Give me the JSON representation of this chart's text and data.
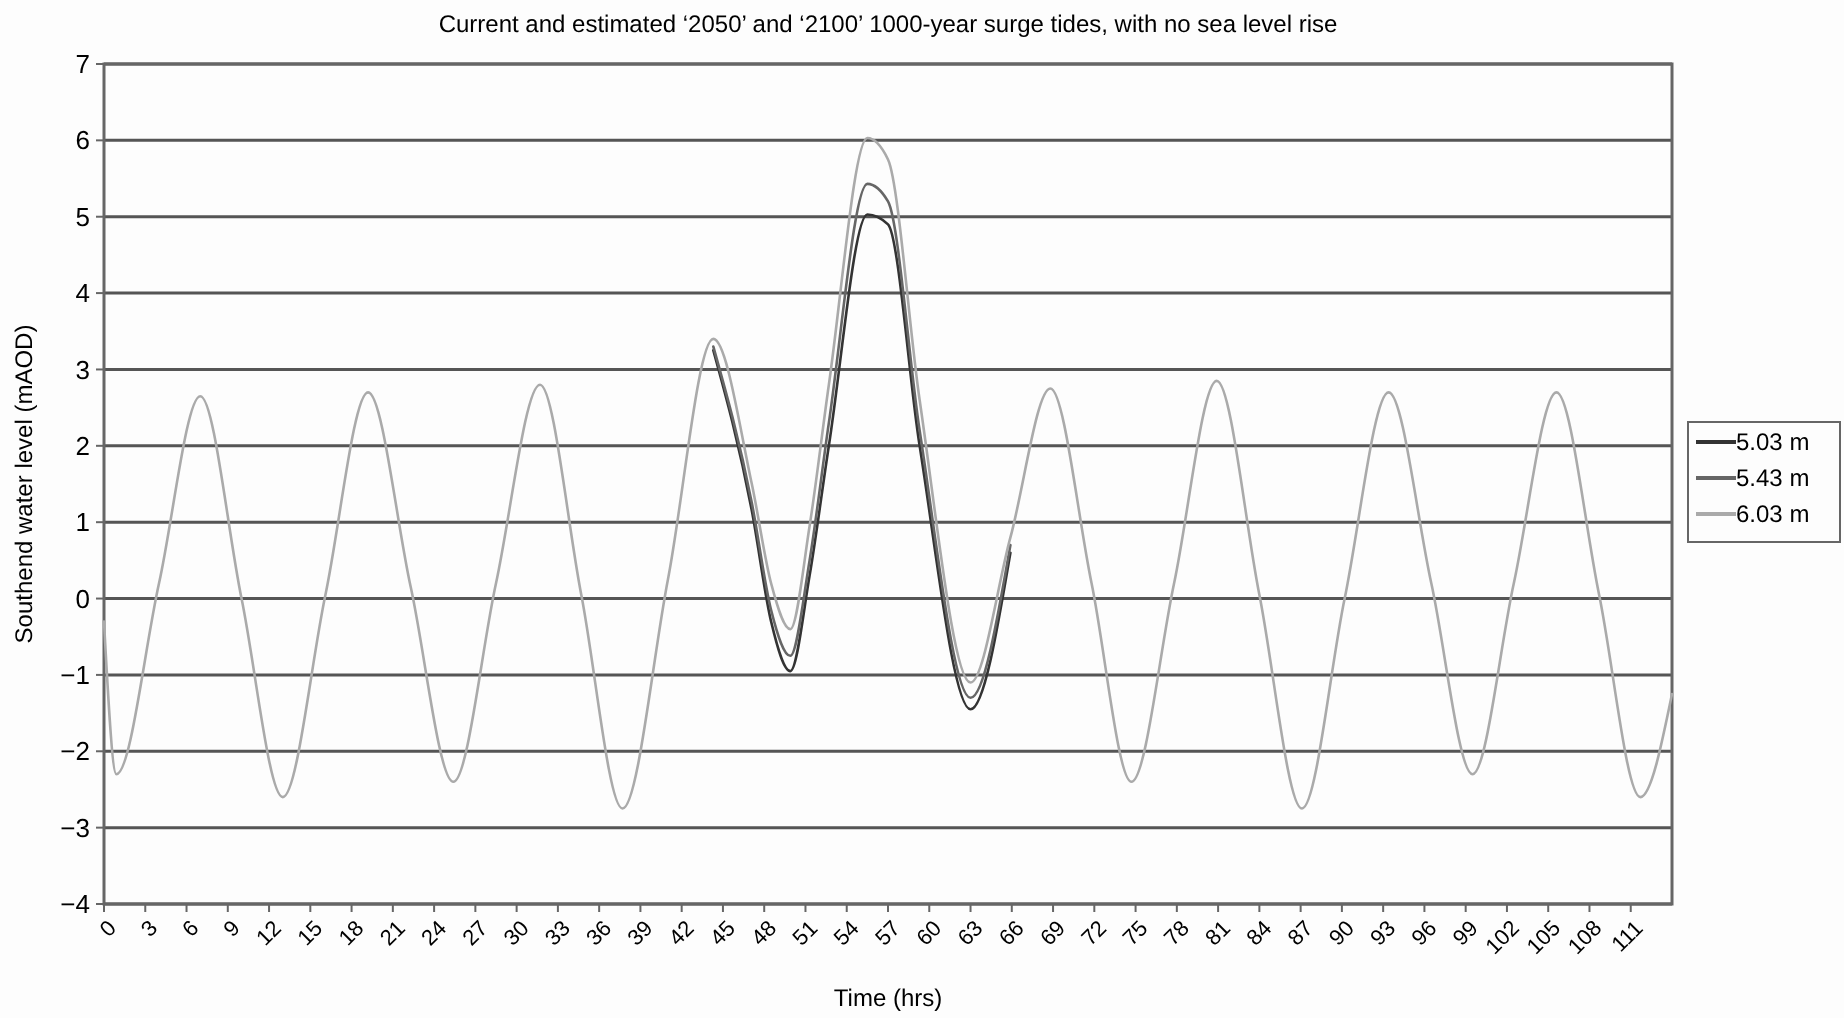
{
  "chart_data": {
    "type": "line",
    "title": "Current and estimated ‘2050’ and ‘2100’ 1000-year surge tides, with no sea level rise",
    "xlabel": "Time (hrs)",
    "ylabel": "Southend water level (mAOD)",
    "x": [
      0,
      0.9,
      4,
      7,
      10,
      13,
      16.1,
      19.2,
      22.3,
      25.4,
      28.5,
      31.7,
      34.7,
      37.7,
      41,
      44.3,
      47.1,
      48.5,
      49.9,
      51.3,
      52.7,
      55.5,
      57,
      59.3,
      63,
      65.9,
      68.8,
      71.8,
      74.7,
      77.8,
      80.9,
      84,
      87.1,
      90.2,
      93.4,
      96.5,
      99.5,
      102.5,
      105.6,
      108.7,
      111.7,
      114
    ],
    "series": [
      {
        "name": "5.03 m",
        "color": "#333333",
        "values": [
          null,
          null,
          null,
          null,
          null,
          null,
          null,
          null,
          null,
          null,
          null,
          null,
          null,
          null,
          null,
          3.25,
          1.15,
          -0.3,
          -0.95,
          0.3,
          2.0,
          5.03,
          4.9,
          2.0,
          -1.45,
          0.6,
          null,
          null,
          null,
          null,
          null,
          null,
          null,
          null,
          null,
          null,
          null,
          null,
          null,
          null,
          null,
          null
        ]
      },
      {
        "name": "5.43 m",
        "color": "#666666",
        "values": [
          null,
          null,
          null,
          null,
          null,
          null,
          null,
          null,
          null,
          null,
          null,
          null,
          null,
          null,
          null,
          3.3,
          1.25,
          -0.15,
          -0.75,
          0.5,
          2.3,
          5.43,
          5.2,
          2.2,
          -1.3,
          0.7,
          null,
          null,
          null,
          null,
          null,
          null,
          null,
          null,
          null,
          null,
          null,
          null,
          null,
          null,
          null,
          null
        ]
      },
      {
        "name": "6.03 m",
        "color": "#aaaaaa",
        "values": [
          -0.3,
          -2.3,
          0.2,
          2.65,
          0,
          -2.6,
          0.05,
          2.7,
          0.15,
          -2.4,
          0.2,
          2.8,
          0.05,
          -2.75,
          0.25,
          3.4,
          1.5,
          0.2,
          -0.4,
          0.95,
          2.8,
          6.03,
          5.75,
          2.6,
          -1.1,
          0.8,
          2.75,
          0.2,
          -2.4,
          0.2,
          2.85,
          0.05,
          -2.75,
          0,
          2.7,
          0.2,
          -2.3,
          0.2,
          2.7,
          0.05,
          -2.6,
          -1.25
        ]
      }
    ],
    "xlim": [
      0,
      114
    ],
    "xticks": [
      0,
      3,
      6,
      9,
      12,
      15,
      18,
      21,
      24,
      27,
      30,
      33,
      36,
      39,
      42,
      45,
      48,
      51,
      54,
      57,
      60,
      63,
      66,
      69,
      72,
      75,
      78,
      81,
      84,
      87,
      90,
      93,
      96,
      99,
      102,
      105,
      108,
      111
    ],
    "ylim": [
      -4,
      7
    ],
    "yticks": [
      {
        "value": -4,
        "label": "−4"
      },
      {
        "value": -3,
        "label": "−3"
      },
      {
        "value": -2,
        "label": "−2"
      },
      {
        "value": -1,
        "label": "−1"
      },
      0,
      1,
      2,
      3,
      4,
      5,
      6,
      7
    ],
    "grid": "y",
    "legend": "right",
    "marker": "none",
    "line_style": "solid"
  }
}
